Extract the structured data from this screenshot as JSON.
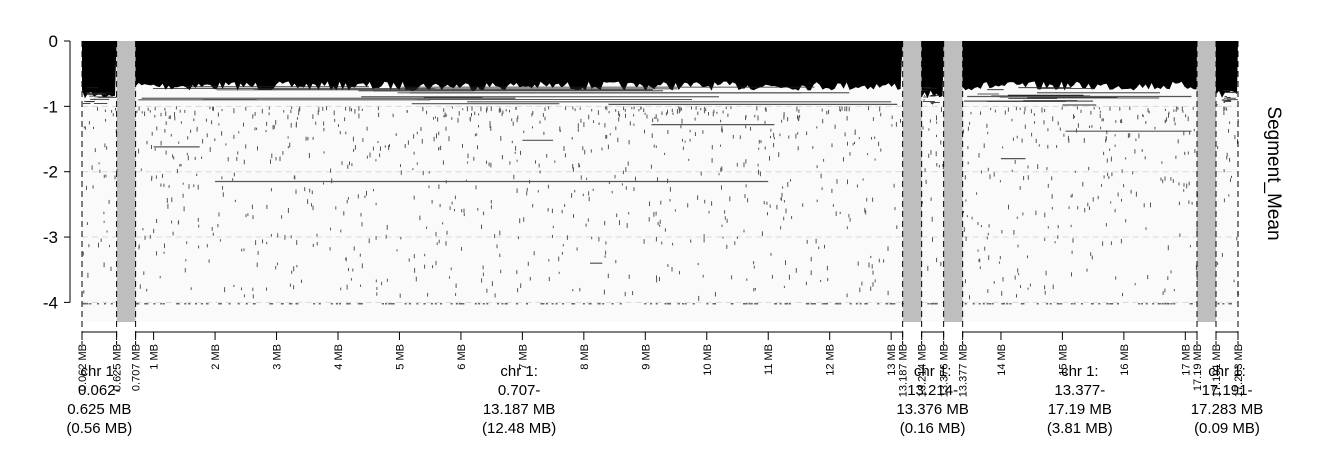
{
  "chart_data": {
    "type": "heatmap",
    "ylabel": "Segment_Mean",
    "ylim": [
      -4.3,
      0
    ],
    "yticks": [
      0,
      -1,
      -2,
      -3,
      -4
    ],
    "gridlines": [
      -1,
      -2,
      -3,
      -4
    ],
    "x_unit": "MB",
    "panels": [
      {
        "start": 0.062,
        "end": 0.625,
        "label": "chr 1:\n0.062-\n0.625 MB\n(0.56 MB)"
      },
      {
        "start": 0.707,
        "end": 13.187,
        "label": "chr 1:\n0.707-\n13.187 MB\n(12.48 MB)"
      },
      {
        "start": 13.214,
        "end": 13.376,
        "label": "chr 1:\n13.214-\n13.376 MB\n(0.16 MB)"
      },
      {
        "start": 13.377,
        "end": 17.19,
        "label": "chr 1:\n13.377-\n17.19 MB\n(3.81 MB)"
      },
      {
        "start": 17.191,
        "end": 17.283,
        "label": "chr 1:\n17.191-\n17.283 MB\n(0.09 MB)"
      }
    ],
    "x_tick_labels": [
      {
        "mb": 0.062,
        "label": "0.062 MB"
      },
      {
        "mb": 0.625,
        "label": "0.625 MB"
      },
      {
        "mb": 0.707,
        "label": "0.707 MB"
      },
      {
        "mb": 1,
        "label": "1 MB"
      },
      {
        "mb": 2,
        "label": "2 MB"
      },
      {
        "mb": 3,
        "label": "3 MB"
      },
      {
        "mb": 4,
        "label": "4 MB"
      },
      {
        "mb": 5,
        "label": "5 MB"
      },
      {
        "mb": 6,
        "label": "6 MB"
      },
      {
        "mb": 7,
        "label": "7 MB"
      },
      {
        "mb": 8,
        "label": "8 MB"
      },
      {
        "mb": 9,
        "label": "9 MB"
      },
      {
        "mb": 10,
        "label": "10 MB"
      },
      {
        "mb": 11,
        "label": "11 MB"
      },
      {
        "mb": 12,
        "label": "12 MB"
      },
      {
        "mb": 13,
        "label": "13 MB"
      },
      {
        "mb": 13.187,
        "label": "13.187 MB"
      },
      {
        "mb": 13.214,
        "label": "13.214 MB"
      },
      {
        "mb": 13.376,
        "label": "13.376 MB"
      },
      {
        "mb": 13.377,
        "label": "13.377 MB"
      },
      {
        "mb": 14,
        "label": "14 MB"
      },
      {
        "mb": 15,
        "label": "15 MB"
      },
      {
        "mb": 16,
        "label": "16 MB"
      },
      {
        "mb": 17,
        "label": "17 MB"
      },
      {
        "mb": 17.19,
        "label": "17.19 MB"
      },
      {
        "mb": 17.191,
        "label": "17.191 MB"
      },
      {
        "mb": 17.283,
        "label": "17.283 MB"
      }
    ],
    "colors": {
      "background": "#fafafa",
      "gap": "#bebebe",
      "dense": "#000000",
      "segment": "#555555",
      "grid": "#d9d9d9"
    },
    "segments": [
      {
        "start": 1.0,
        "end": 1.75,
        "y": -1.62
      },
      {
        "start": 2.0,
        "end": 11.0,
        "y": -2.15
      },
      {
        "start": 7.0,
        "end": 7.5,
        "y": -1.52
      },
      {
        "start": 9.1,
        "end": 11.1,
        "y": -1.28
      },
      {
        "start": 0.75,
        "end": 5.5,
        "y": -0.9
      },
      {
        "start": 5.2,
        "end": 7.6,
        "y": -0.96
      },
      {
        "start": 8.4,
        "end": 13.1,
        "y": -0.97
      },
      {
        "start": 6.1,
        "end": 13.0,
        "y": -0.93
      },
      {
        "start": 13.45,
        "end": 17.1,
        "y": -0.85
      },
      {
        "start": 13.4,
        "end": 15.5,
        "y": -0.92
      },
      {
        "start": 15.0,
        "end": 15.55,
        "y": -0.98
      },
      {
        "start": 15.05,
        "end": 17.1,
        "y": -1.38
      },
      {
        "start": 14.0,
        "end": 14.4,
        "y": -1.8
      },
      {
        "start": 8.1,
        "end": 8.3,
        "y": -3.4
      }
    ]
  }
}
